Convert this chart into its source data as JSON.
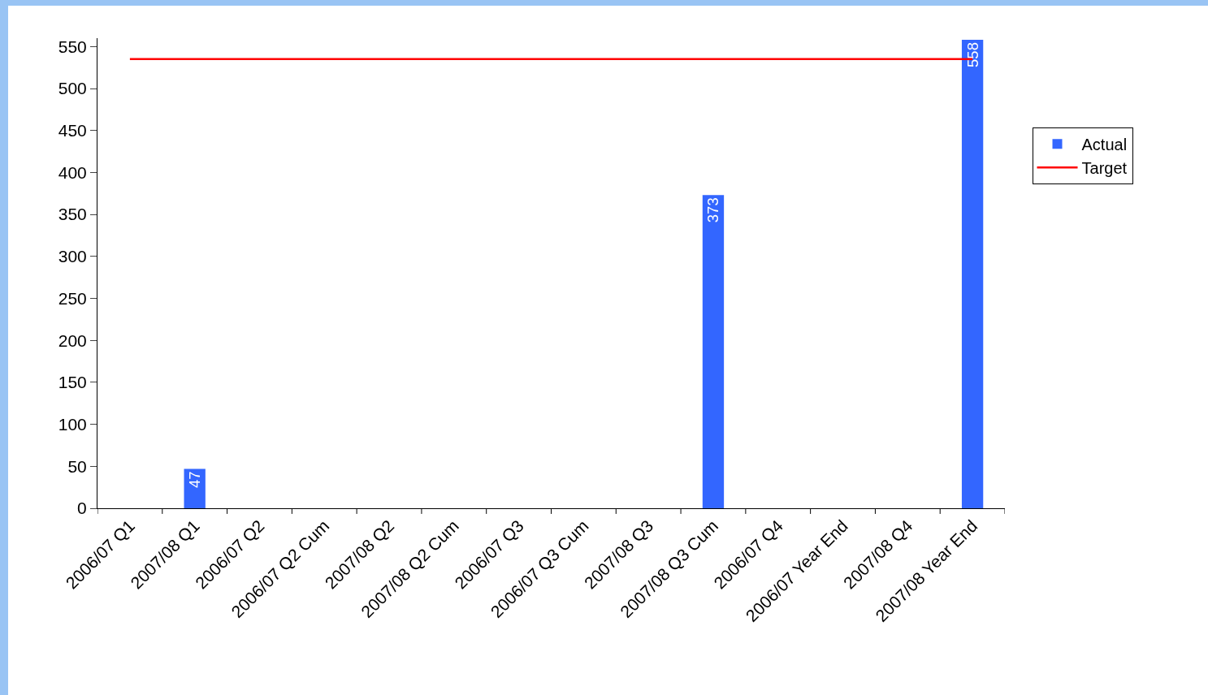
{
  "chart_data": {
    "type": "bar",
    "categories": [
      "2006/07 Q1",
      "2007/08 Q1",
      "2006/07 Q2",
      "2006/07 Q2 Cum",
      "2007/08 Q2",
      "2007/08 Q2 Cum",
      "2006/07 Q3",
      "2006/07 Q3 Cum",
      "2007/08 Q3",
      "2007/08 Q3 Cum",
      "2006/07 Q4",
      "2006/07 Year End",
      "2007/08 Q4",
      "2007/08 Year End"
    ],
    "series": [
      {
        "name": "Actual",
        "color": "#3366ff",
        "values": [
          null,
          47,
          null,
          null,
          null,
          null,
          null,
          null,
          null,
          373,
          null,
          null,
          null,
          558
        ],
        "value_labels": [
          null,
          "47",
          null,
          null,
          null,
          null,
          null,
          null,
          null,
          "373",
          null,
          null,
          null,
          "558"
        ]
      },
      {
        "name": "Target",
        "type": "line",
        "color": "#ff0000",
        "values": [
          535,
          535,
          535,
          535,
          535,
          535,
          535,
          535,
          535,
          535,
          535,
          535,
          535,
          535
        ]
      }
    ],
    "ylim": [
      0,
      560
    ],
    "yticks": [
      0,
      50,
      100,
      150,
      200,
      250,
      300,
      350,
      400,
      450,
      500,
      550
    ],
    "grid": false,
    "legend": "right",
    "marker": "none",
    "line_style": "solid"
  }
}
